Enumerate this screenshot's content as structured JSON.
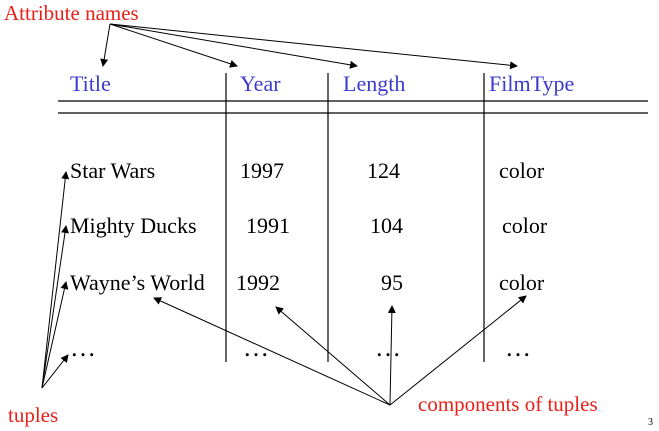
{
  "annotations": {
    "attribute_names": "Attribute names",
    "tuples": "tuples",
    "components": "components of tuples"
  },
  "colors": {
    "annotation": "#e8201a",
    "header": "#3b3bcc",
    "body": "#000000"
  },
  "table": {
    "headers": [
      "Title",
      "Year",
      "Length",
      "FilmType"
    ],
    "rows": [
      [
        "Star Wars",
        "1997",
        "124",
        "color"
      ],
      [
        "Mighty Ducks",
        "1991",
        "104",
        "color"
      ],
      [
        "Wayne’s World",
        "1992",
        "95",
        "color"
      ],
      [
        "…",
        "…",
        "…",
        "…"
      ]
    ]
  },
  "page_number": "3"
}
